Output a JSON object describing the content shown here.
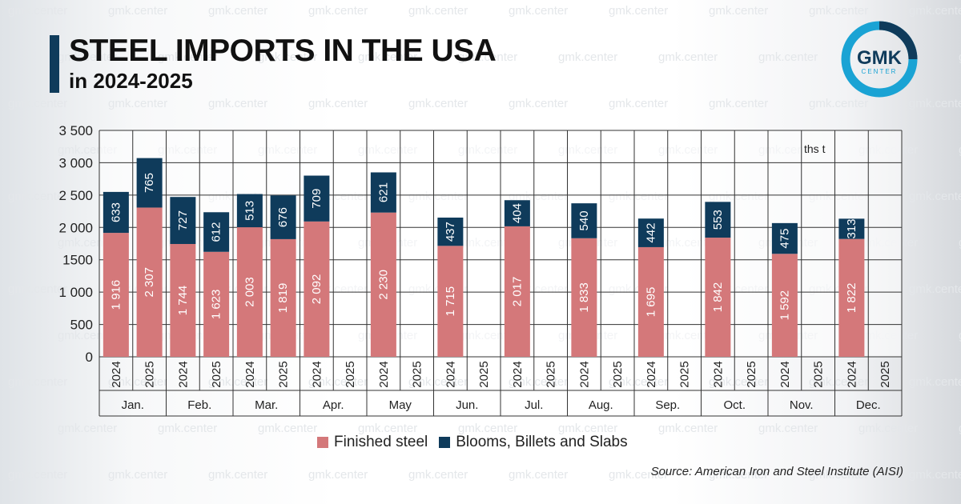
{
  "header": {
    "title": "STEEL IMPORTS IN THE USA",
    "subtitle": "in 2024-2025"
  },
  "logo": {
    "text": "GMK",
    "subtext": "CENTER"
  },
  "watermark": {
    "text": "gmk.center"
  },
  "colors": {
    "finished": "#d4787a",
    "blooms": "#0f3b5b",
    "title_bar": "#0f3b5b",
    "logo_ring": "#1aa3d4"
  },
  "chart_data": {
    "type": "bar",
    "stacked": true,
    "unit_label": "ths t",
    "ylim": [
      0,
      3500
    ],
    "yticks": [
      {
        "value": 0,
        "label": "0"
      },
      {
        "value": 500,
        "label": "500"
      },
      {
        "value": 1000,
        "label": "1 000"
      },
      {
        "value": 1500,
        "label": "1500"
      },
      {
        "value": 2000,
        "label": "2 000"
      },
      {
        "value": 2500,
        "label": "2 500"
      },
      {
        "value": 3000,
        "label": "3 000"
      },
      {
        "value": 3500,
        "label": "3 500"
      }
    ],
    "months": [
      "Jan.",
      "Feb.",
      "Mar.",
      "Apr.",
      "May",
      "Jun.",
      "Jul.",
      "Aug.",
      "Sep.",
      "Oct.",
      "Nov.",
      "Dec."
    ],
    "years": [
      "2024",
      "2025"
    ],
    "series": [
      {
        "name": "Finished steel",
        "values": [
          [
            1916,
            2307
          ],
          [
            1744,
            1623
          ],
          [
            2003,
            1819
          ],
          [
            2092,
            null
          ],
          [
            2230,
            null
          ],
          [
            1715,
            null
          ],
          [
            2017,
            null
          ],
          [
            1833,
            null
          ],
          [
            1695,
            null
          ],
          [
            1842,
            null
          ],
          [
            1592,
            null
          ],
          [
            1822,
            null
          ]
        ],
        "labels": [
          [
            "1 916",
            "2 307"
          ],
          [
            "1 744",
            "1 623"
          ],
          [
            "2 003",
            "1 819"
          ],
          [
            "2 092",
            null
          ],
          [
            "2 230",
            null
          ],
          [
            "1 715",
            null
          ],
          [
            "2 017",
            null
          ],
          [
            "1 833",
            null
          ],
          [
            "1 695",
            null
          ],
          [
            "1 842",
            null
          ],
          [
            "1 592",
            null
          ],
          [
            "1 822",
            null
          ]
        ]
      },
      {
        "name": "Blooms, Billets and Slabs",
        "values": [
          [
            633,
            765
          ],
          [
            727,
            612
          ],
          [
            513,
            676
          ],
          [
            709,
            null
          ],
          [
            621,
            null
          ],
          [
            437,
            null
          ],
          [
            404,
            null
          ],
          [
            540,
            null
          ],
          [
            442,
            null
          ],
          [
            553,
            null
          ],
          [
            475,
            null
          ],
          [
            313,
            null
          ]
        ],
        "labels": [
          [
            "633",
            "765"
          ],
          [
            "727",
            "612"
          ],
          [
            "513",
            "676"
          ],
          [
            "709",
            null
          ],
          [
            "621",
            null
          ],
          [
            "437",
            null
          ],
          [
            "404",
            null
          ],
          [
            "540",
            null
          ],
          [
            "442",
            null
          ],
          [
            "553",
            null
          ],
          [
            "475",
            null
          ],
          [
            "313",
            null
          ]
        ]
      }
    ],
    "legend_position": "bottom",
    "grid": true
  },
  "legend": {
    "finished_label": "Finished steel",
    "blooms_label": "Blooms, Billets and Slabs"
  },
  "source": "Source: American Iron and Steel Institute (AISI)"
}
